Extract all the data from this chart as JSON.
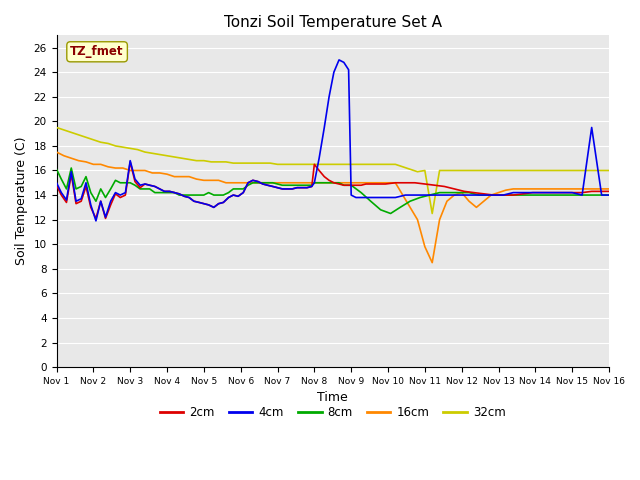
{
  "title": "Tonzi Soil Temperature Set A",
  "xlabel": "Time",
  "ylabel": "Soil Temperature (C)",
  "annotation_text": "TZ_fmet",
  "annotation_box_color": "#ffffcc",
  "annotation_text_color": "#8b0000",
  "ylim": [
    0,
    27
  ],
  "yticks": [
    0,
    2,
    4,
    6,
    8,
    10,
    12,
    14,
    16,
    18,
    20,
    22,
    24,
    26
  ],
  "x_labels": [
    "Nov 1",
    "Nov 2",
    "Nov 3",
    "Nov 4",
    "Nov 5",
    "Nov 6",
    "Nov 7",
    "Nov 8",
    "Nov 9",
    "Nov 10",
    "Nov 11",
    "Nov 12",
    "Nov 13",
    "Nov 14",
    "Nov 15",
    "Nov 16"
  ],
  "plot_bg": "#e8e8e8",
  "fig_bg": "#ffffff",
  "grid_color": "#ffffff",
  "series": {
    "2cm": {
      "color": "#dd0000",
      "linewidth": 1.2,
      "x": [
        0,
        0.13,
        0.27,
        0.4,
        0.53,
        0.67,
        0.8,
        0.93,
        1.07,
        1.2,
        1.33,
        1.47,
        1.6,
        1.73,
        1.87,
        2.0,
        2.13,
        2.27,
        2.4,
        2.53,
        2.67,
        2.8,
        2.93,
        3.07,
        3.2,
        3.33,
        3.47,
        3.6,
        3.73,
        3.87,
        4.0,
        4.13,
        4.27,
        4.4,
        4.53,
        4.67,
        4.8,
        4.93,
        5.07,
        5.2,
        5.33,
        5.47,
        5.6,
        5.73,
        5.87,
        6.0,
        6.13,
        6.27,
        6.4,
        6.53,
        6.67,
        6.8,
        6.93,
        7.0,
        7.13,
        7.27,
        7.4,
        7.53,
        7.67,
        7.8,
        7.93,
        8.0,
        8.13,
        8.27,
        8.4,
        8.67,
        8.93,
        9.2,
        9.47,
        9.73,
        10.0,
        10.27,
        10.53,
        10.8,
        11.07,
        11.33,
        11.6,
        11.87,
        12.13,
        12.4,
        12.67,
        12.93,
        13.2,
        13.47,
        13.73,
        14.0,
        14.27,
        14.53,
        14.8,
        15.0
      ],
      "y": [
        14.8,
        14.0,
        13.4,
        15.7,
        13.3,
        13.5,
        14.7,
        13.0,
        12.1,
        13.5,
        12.1,
        13.2,
        14.1,
        13.8,
        14.0,
        16.7,
        15.1,
        14.6,
        14.9,
        14.8,
        14.7,
        14.5,
        14.3,
        14.3,
        14.2,
        14.1,
        13.9,
        13.8,
        13.5,
        13.4,
        13.3,
        13.2,
        13.0,
        13.3,
        13.4,
        13.8,
        14.0,
        13.9,
        14.2,
        15.0,
        15.2,
        15.1,
        14.9,
        14.8,
        14.7,
        14.6,
        14.5,
        14.5,
        14.5,
        14.6,
        14.6,
        14.6,
        14.7,
        16.5,
        16.0,
        15.5,
        15.2,
        15.0,
        14.9,
        14.8,
        14.8,
        14.8,
        14.8,
        14.8,
        14.9,
        14.9,
        14.9,
        15.0,
        15.0,
        15.0,
        14.9,
        14.8,
        14.7,
        14.5,
        14.3,
        14.2,
        14.1,
        14.0,
        14.0,
        14.0,
        14.1,
        14.2,
        14.2,
        14.2,
        14.2,
        14.2,
        14.2,
        14.3,
        14.3,
        14.3
      ]
    },
    "4cm": {
      "color": "#0000ee",
      "linewidth": 1.2,
      "x": [
        0,
        0.13,
        0.27,
        0.4,
        0.53,
        0.67,
        0.8,
        0.93,
        1.07,
        1.2,
        1.33,
        1.47,
        1.6,
        1.73,
        1.87,
        2.0,
        2.13,
        2.27,
        2.4,
        2.53,
        2.67,
        2.8,
        2.93,
        3.07,
        3.2,
        3.33,
        3.47,
        3.6,
        3.73,
        3.87,
        4.0,
        4.13,
        4.27,
        4.4,
        4.53,
        4.67,
        4.8,
        4.93,
        5.07,
        5.2,
        5.33,
        5.47,
        5.6,
        5.73,
        5.87,
        6.0,
        6.13,
        6.27,
        6.4,
        6.53,
        6.67,
        6.8,
        6.93,
        7.0,
        7.13,
        7.27,
        7.4,
        7.53,
        7.67,
        7.8,
        7.93,
        8.0,
        8.13,
        8.27,
        8.4,
        8.53,
        8.67,
        8.8,
        8.93,
        9.07,
        9.2,
        9.47,
        9.73,
        10.0,
        10.27,
        10.53,
        10.8,
        11.07,
        11.33,
        11.6,
        11.87,
        12.13,
        12.4,
        12.67,
        12.93,
        13.2,
        13.47,
        13.73,
        14.0,
        14.27,
        14.53,
        14.8,
        15.0
      ],
      "y": [
        15.0,
        14.2,
        13.6,
        15.9,
        13.5,
        13.7,
        15.0,
        13.2,
        11.9,
        13.5,
        12.2,
        13.5,
        14.2,
        14.0,
        14.2,
        16.8,
        15.3,
        14.8,
        14.9,
        14.8,
        14.7,
        14.5,
        14.3,
        14.3,
        14.2,
        14.1,
        13.9,
        13.8,
        13.5,
        13.4,
        13.3,
        13.2,
        13.0,
        13.3,
        13.4,
        13.8,
        14.0,
        13.9,
        14.2,
        15.0,
        15.2,
        15.1,
        14.9,
        14.8,
        14.7,
        14.6,
        14.5,
        14.5,
        14.5,
        14.6,
        14.6,
        14.6,
        14.7,
        15.0,
        17.0,
        19.5,
        22.0,
        24.0,
        25.0,
        24.8,
        24.2,
        14.0,
        13.8,
        13.8,
        13.8,
        13.8,
        13.8,
        13.8,
        13.8,
        13.8,
        13.8,
        14.0,
        14.0,
        14.0,
        14.0,
        14.0,
        14.0,
        14.0,
        14.0,
        14.0,
        14.0,
        14.0,
        14.2,
        14.2,
        14.2,
        14.2,
        14.2,
        14.2,
        14.2,
        14.0,
        19.5,
        14.0,
        14.0
      ]
    },
    "8cm": {
      "color": "#00aa00",
      "linewidth": 1.2,
      "x": [
        0,
        0.13,
        0.27,
        0.4,
        0.53,
        0.67,
        0.8,
        0.93,
        1.07,
        1.2,
        1.33,
        1.47,
        1.6,
        1.73,
        1.87,
        2.0,
        2.13,
        2.27,
        2.4,
        2.53,
        2.67,
        2.8,
        2.93,
        3.07,
        3.2,
        3.33,
        3.47,
        3.6,
        3.73,
        3.87,
        4.0,
        4.13,
        4.27,
        4.4,
        4.53,
        4.67,
        4.8,
        4.93,
        5.07,
        5.2,
        5.33,
        5.47,
        5.6,
        5.73,
        5.87,
        6.0,
        6.13,
        6.27,
        6.4,
        6.53,
        6.67,
        6.8,
        6.93,
        7.0,
        7.13,
        7.27,
        7.4,
        7.53,
        7.67,
        7.8,
        7.93,
        8.0,
        8.27,
        8.53,
        8.8,
        9.07,
        9.33,
        9.6,
        9.87,
        10.13,
        10.4,
        10.67,
        10.93,
        11.2,
        11.47,
        11.73,
        12.0,
        12.27,
        12.53,
        12.8,
        13.07,
        13.33,
        13.6,
        13.87,
        14.13,
        14.4,
        14.67,
        14.93,
        15.0
      ],
      "y": [
        16.1,
        15.3,
        14.5,
        16.2,
        14.5,
        14.7,
        15.5,
        14.2,
        13.5,
        14.5,
        13.8,
        14.5,
        15.2,
        15.0,
        15.0,
        15.0,
        14.8,
        14.5,
        14.5,
        14.5,
        14.2,
        14.2,
        14.2,
        14.2,
        14.2,
        14.0,
        14.0,
        14.0,
        14.0,
        14.0,
        14.0,
        14.2,
        14.0,
        14.0,
        14.0,
        14.2,
        14.5,
        14.5,
        14.5,
        14.8,
        15.0,
        15.0,
        15.0,
        15.0,
        15.0,
        14.9,
        14.8,
        14.8,
        14.8,
        14.8,
        14.8,
        14.8,
        14.8,
        15.0,
        15.0,
        15.0,
        15.0,
        15.0,
        15.0,
        14.8,
        14.8,
        14.8,
        14.2,
        13.5,
        12.8,
        12.5,
        13.0,
        13.5,
        13.8,
        14.0,
        14.2,
        14.2,
        14.2,
        14.2,
        14.0,
        14.0,
        14.0,
        14.0,
        14.0,
        14.0,
        14.0,
        14.0,
        14.0,
        14.0,
        14.0,
        14.0,
        14.0,
        14.0,
        14.0
      ]
    },
    "16cm": {
      "color": "#ff8800",
      "linewidth": 1.2,
      "x": [
        0,
        0.2,
        0.4,
        0.6,
        0.8,
        1.0,
        1.2,
        1.4,
        1.6,
        1.8,
        2.0,
        2.2,
        2.4,
        2.6,
        2.8,
        3.0,
        3.2,
        3.4,
        3.6,
        3.8,
        4.0,
        4.2,
        4.4,
        4.6,
        4.8,
        5.0,
        5.2,
        5.4,
        5.6,
        5.8,
        6.0,
        6.2,
        6.4,
        6.6,
        6.8,
        7.0,
        7.2,
        7.4,
        7.6,
        7.8,
        8.0,
        8.2,
        8.4,
        8.6,
        8.8,
        9.0,
        9.2,
        9.4,
        9.6,
        9.8,
        10.0,
        10.2,
        10.4,
        10.6,
        10.8,
        11.0,
        11.2,
        11.4,
        11.6,
        11.8,
        12.0,
        12.2,
        12.4,
        12.6,
        12.8,
        13.0,
        13.2,
        13.4,
        13.6,
        13.8,
        14.0,
        14.2,
        14.4,
        14.6,
        14.8,
        15.0
      ],
      "y": [
        17.5,
        17.2,
        17.0,
        16.8,
        16.7,
        16.5,
        16.5,
        16.3,
        16.2,
        16.2,
        16.0,
        16.0,
        16.0,
        15.8,
        15.8,
        15.7,
        15.5,
        15.5,
        15.5,
        15.3,
        15.2,
        15.2,
        15.2,
        15.0,
        15.0,
        15.0,
        15.0,
        15.0,
        15.0,
        15.0,
        15.0,
        15.0,
        15.0,
        15.0,
        15.0,
        15.0,
        15.0,
        15.0,
        15.0,
        15.0,
        15.0,
        15.0,
        15.0,
        15.0,
        15.0,
        15.0,
        15.0,
        14.0,
        13.0,
        12.0,
        9.8,
        8.5,
        12.0,
        13.5,
        14.0,
        14.2,
        13.5,
        13.0,
        13.5,
        14.0,
        14.2,
        14.4,
        14.5,
        14.5,
        14.5,
        14.5,
        14.5,
        14.5,
        14.5,
        14.5,
        14.5,
        14.5,
        14.5,
        14.5,
        14.5,
        14.5
      ]
    },
    "32cm": {
      "color": "#cccc00",
      "linewidth": 1.2,
      "x": [
        0,
        0.2,
        0.4,
        0.6,
        0.8,
        1.0,
        1.2,
        1.4,
        1.6,
        1.8,
        2.0,
        2.2,
        2.4,
        2.6,
        2.8,
        3.0,
        3.2,
        3.4,
        3.6,
        3.8,
        4.0,
        4.2,
        4.4,
        4.6,
        4.8,
        5.0,
        5.2,
        5.4,
        5.6,
        5.8,
        6.0,
        6.2,
        6.4,
        6.6,
        6.8,
        7.0,
        7.2,
        7.4,
        7.6,
        7.8,
        8.0,
        8.2,
        8.4,
        8.6,
        8.8,
        9.0,
        9.2,
        9.4,
        9.6,
        9.8,
        10.0,
        10.2,
        10.4,
        10.6,
        10.8,
        11.0,
        11.2,
        11.4,
        11.6,
        11.8,
        12.0,
        12.2,
        12.4,
        12.6,
        12.8,
        13.0,
        13.2,
        13.4,
        13.6,
        13.8,
        14.0,
        14.2,
        14.4,
        14.6,
        14.8,
        15.0
      ],
      "y": [
        19.5,
        19.3,
        19.1,
        18.9,
        18.7,
        18.5,
        18.3,
        18.2,
        18.0,
        17.9,
        17.8,
        17.7,
        17.5,
        17.4,
        17.3,
        17.2,
        17.1,
        17.0,
        16.9,
        16.8,
        16.8,
        16.7,
        16.7,
        16.7,
        16.6,
        16.6,
        16.6,
        16.6,
        16.6,
        16.6,
        16.5,
        16.5,
        16.5,
        16.5,
        16.5,
        16.5,
        16.5,
        16.5,
        16.5,
        16.5,
        16.5,
        16.5,
        16.5,
        16.5,
        16.5,
        16.5,
        16.5,
        16.3,
        16.1,
        15.9,
        16.0,
        12.5,
        16.0,
        16.0,
        16.0,
        16.0,
        16.0,
        16.0,
        16.0,
        16.0,
        16.0,
        16.0,
        16.0,
        16.0,
        16.0,
        16.0,
        16.0,
        16.0,
        16.0,
        16.0,
        16.0,
        16.0,
        16.0,
        16.0,
        16.0,
        16.0
      ]
    }
  },
  "legend_entries": [
    "2cm",
    "4cm",
    "8cm",
    "16cm",
    "32cm"
  ],
  "legend_colors": [
    "#dd0000",
    "#0000ee",
    "#00aa00",
    "#ff8800",
    "#cccc00"
  ]
}
